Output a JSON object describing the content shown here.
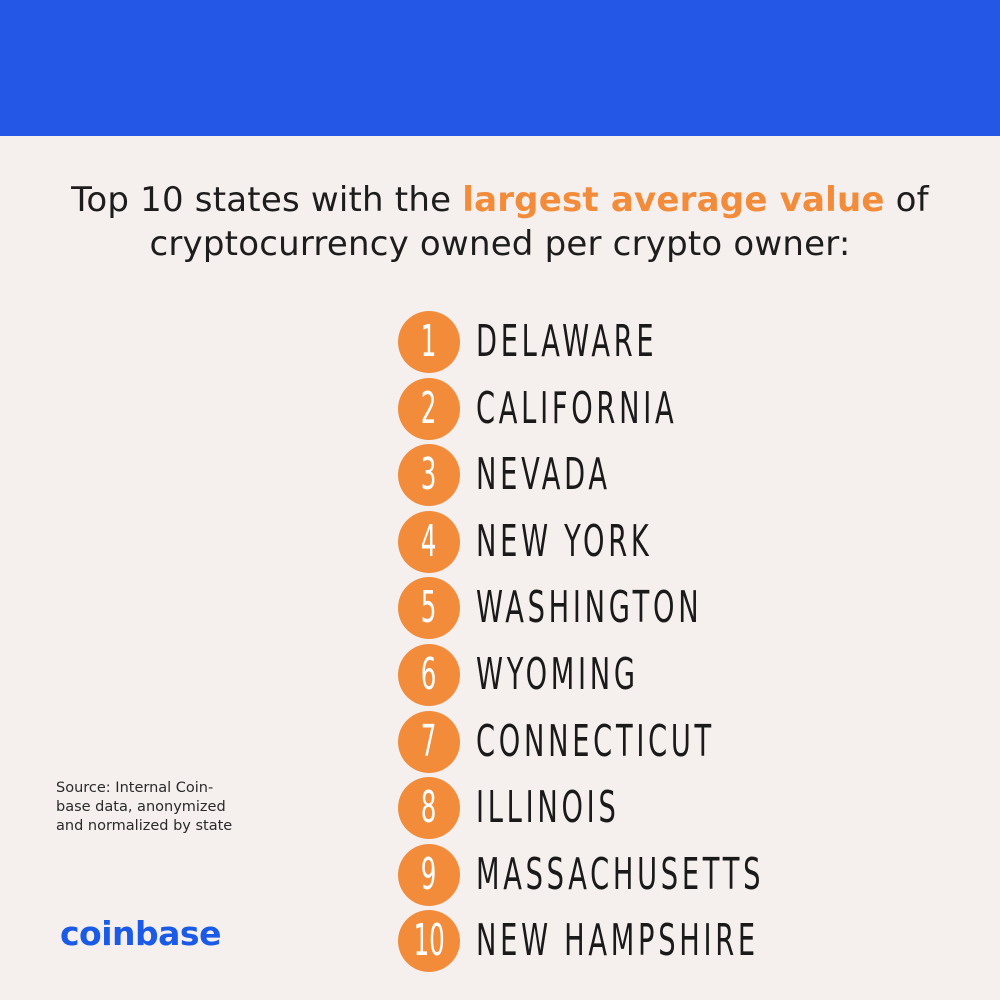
{
  "headline": {
    "pre": "Top 10 states with the ",
    "highlight": "largest average value",
    "post": " of",
    "line2": "cryptocurrency owned per crypto owner:"
  },
  "ranking": [
    {
      "rank": "1",
      "state": "DELAWARE"
    },
    {
      "rank": "2",
      "state": "CALIFORNIA"
    },
    {
      "rank": "3",
      "state": "NEVADA"
    },
    {
      "rank": "4",
      "state": "NEW YORK"
    },
    {
      "rank": "5",
      "state": "WASHINGTON"
    },
    {
      "rank": "6",
      "state": "WYOMING"
    },
    {
      "rank": "7",
      "state": "CONNECTICUT"
    },
    {
      "rank": "8",
      "state": "ILLINOIS"
    },
    {
      "rank": "9",
      "state": "MASSACHUSETTS"
    },
    {
      "rank": "10",
      "state": "NEW HAMPSHIRE"
    }
  ],
  "source": {
    "line1": "Source: Internal Coin-",
    "line2": "base data, anonymized",
    "line3": "and normalized by state"
  },
  "logo": "coinbase",
  "colors": {
    "band": "#2557e6",
    "accent": "#f28c3b",
    "background": "#f5efed",
    "logo": "#1a5ae6"
  }
}
